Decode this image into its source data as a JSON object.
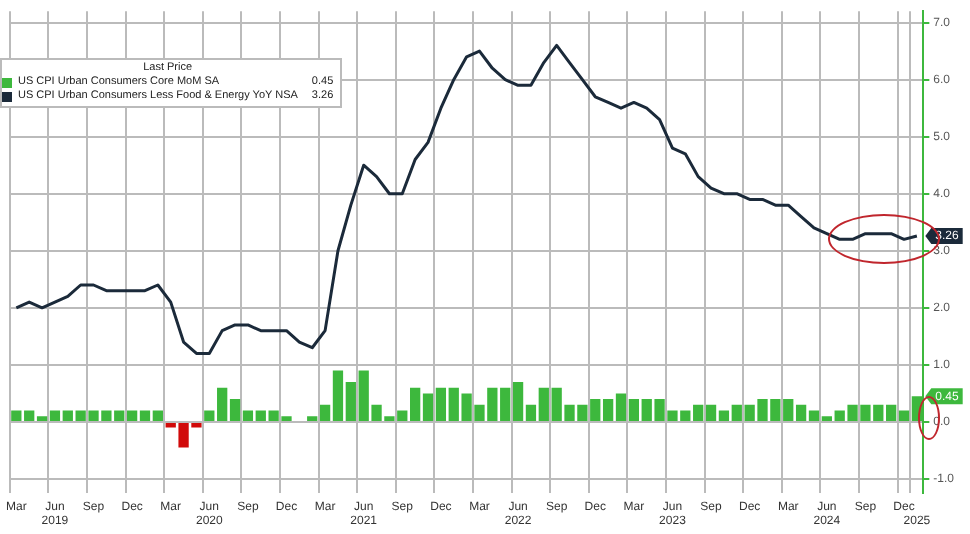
{
  "chart_data": {
    "type": "bar",
    "legend_title": "Last Price",
    "legend": "top left",
    "grid": true,
    "categories": [
      "Mar",
      null,
      null,
      "Jun\n2019",
      null,
      null,
      "Sep",
      null,
      null,
      "Dec",
      null,
      null,
      "Mar",
      null,
      null,
      "Jun\n2020",
      null,
      null,
      "Sep",
      null,
      null,
      "Dec",
      null,
      null,
      "Mar",
      null,
      null,
      "Jun\n2021",
      null,
      null,
      "Sep",
      null,
      null,
      "Dec",
      null,
      null,
      "Mar",
      null,
      null,
      "Jun\n2022",
      null,
      null,
      "Sep",
      null,
      null,
      "Dec",
      null,
      null,
      "Mar",
      null,
      null,
      "Jun\n2023",
      null,
      null,
      "Sep",
      null,
      null,
      "Dec",
      null,
      null,
      "Mar",
      null,
      null,
      "Jun\n2024",
      null,
      null,
      "Sep",
      null,
      null,
      "Dec",
      "\n2025"
    ],
    "ylim": [
      -1.25,
      7.2
    ],
    "yticks": [
      {
        "value": -1,
        "label": "-1.0"
      },
      {
        "value": 0,
        "label": "0.0"
      },
      {
        "value": 1,
        "label": "1.0"
      },
      {
        "value": 2,
        "label": "2.0"
      },
      {
        "value": 3,
        "label": "3.0"
      },
      {
        "value": 4,
        "label": "4.0"
      },
      {
        "value": 5,
        "label": "5.0"
      },
      {
        "value": 6,
        "label": "6.0"
      },
      {
        "value": 7,
        "label": "7.0"
      }
    ],
    "series": [
      {
        "name": "US CPI Urban Consumers Core MoM SA",
        "color": "#3db83d",
        "colors": [
          "#3db83d",
          "#3db83d",
          "#3db83d",
          "#3db83d",
          "#3db83d",
          "#3db83d",
          "#3db83d",
          "#3db83d",
          "#3db83d",
          "#3db83d",
          "#3db83d",
          "#3db83d",
          "#d10a0a",
          "#d10a0a",
          "#d10a0a",
          "#3db83d",
          "#3db83d",
          "#3db83d",
          "#3db83d",
          "#3db83d",
          "#3db83d",
          "#3db83d",
          "#3db83d",
          "#3db83d",
          "#3db83d",
          "#3db83d",
          "#3db83d",
          "#3db83d",
          "#3db83d",
          "#3db83d",
          "#3db83d",
          "#3db83d",
          "#3db83d",
          "#3db83d",
          "#3db83d",
          "#3db83d",
          "#3db83d",
          "#3db83d",
          "#3db83d",
          "#3db83d",
          "#3db83d",
          "#3db83d",
          "#3db83d",
          "#3db83d",
          "#3db83d",
          "#3db83d",
          "#3db83d",
          "#3db83d",
          "#3db83d",
          "#3db83d",
          "#3db83d",
          "#3db83d",
          "#3db83d",
          "#3db83d",
          "#3db83d",
          "#3db83d",
          "#3db83d",
          "#3db83d",
          "#3db83d",
          "#3db83d",
          "#3db83d",
          "#3db83d",
          "#3db83d",
          "#3db83d",
          "#3db83d",
          "#3db83d",
          "#3db83d",
          "#3db83d",
          "#3db83d",
          "#3db83d",
          "#3db83d"
        ],
        "values": [
          0.2,
          0.2,
          0.1,
          0.2,
          0.2,
          0.2,
          0.2,
          0.2,
          0.2,
          0.2,
          0.2,
          0.2,
          -0.1,
          -0.45,
          -0.1,
          0.2,
          0.6,
          0.4,
          0.2,
          0.2,
          0.2,
          0.1,
          0.0,
          0.1,
          0.3,
          0.9,
          0.7,
          0.9,
          0.3,
          0.1,
          0.2,
          0.6,
          0.5,
          0.6,
          0.6,
          0.5,
          0.3,
          0.6,
          0.6,
          0.7,
          0.3,
          0.6,
          0.6,
          0.3,
          0.3,
          0.4,
          0.4,
          0.5,
          0.4,
          0.4,
          0.4,
          0.2,
          0.2,
          0.3,
          0.3,
          0.2,
          0.3,
          0.3,
          0.4,
          0.4,
          0.4,
          0.3,
          0.2,
          0.1,
          0.2,
          0.3,
          0.3,
          0.3,
          0.3,
          0.2,
          0.45
        ]
      },
      {
        "name": "US CPI Urban Consumers Less Food & Energy YoY NSA",
        "type": "line",
        "color": "#1b2a3a",
        "marker": "none",
        "values": [
          2.0,
          2.1,
          2.0,
          2.1,
          2.2,
          2.4,
          2.4,
          2.3,
          2.3,
          2.3,
          2.3,
          2.4,
          2.1,
          1.4,
          1.2,
          1.2,
          1.6,
          1.7,
          1.7,
          1.6,
          1.6,
          1.6,
          1.4,
          1.3,
          1.6,
          3.0,
          3.8,
          4.5,
          4.3,
          4.0,
          4.0,
          4.6,
          4.9,
          5.5,
          6.0,
          6.4,
          6.5,
          6.2,
          6.0,
          5.9,
          5.9,
          6.3,
          6.6,
          6.3,
          6.0,
          5.7,
          5.6,
          5.5,
          5.6,
          5.5,
          5.3,
          4.8,
          4.7,
          4.3,
          4.1,
          4.0,
          4.0,
          3.9,
          3.9,
          3.8,
          3.8,
          3.6,
          3.4,
          3.3,
          3.2,
          3.2,
          3.3,
          3.3,
          3.3,
          3.2,
          3.26
        ]
      }
    ],
    "annotations": [
      "0.45",
      "3.26",
      {
        "text": "3.26",
        "y": 3.26
      },
      {
        "text": "0.45",
        "y": 0.45
      }
    ]
  }
}
